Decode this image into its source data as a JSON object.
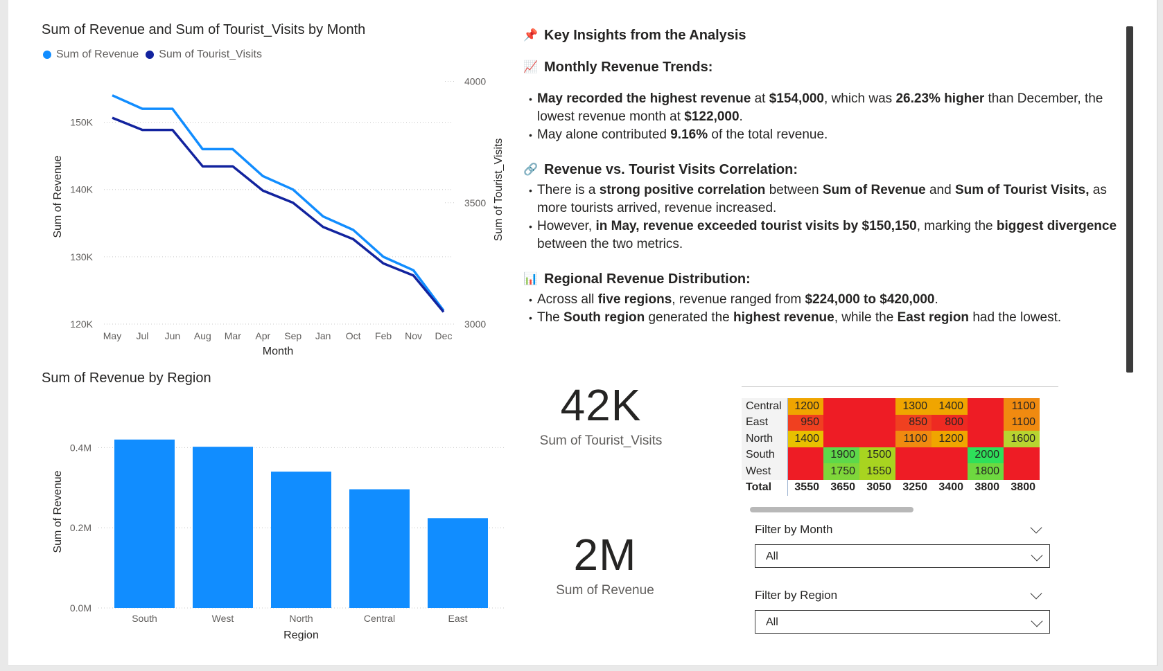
{
  "line_chart": {
    "title": "Sum of Revenue and Sum of Tourist_Visits by Month",
    "legend": [
      {
        "label": "Sum of Revenue",
        "color": "#118DFF"
      },
      {
        "label": "Sum of Tourist_Visits",
        "color": "#12239E"
      }
    ]
  },
  "bar_chart": {
    "title": "Sum of Revenue by Region"
  },
  "chart_data": [
    {
      "type": "line",
      "title": "Sum of Revenue and Sum of Tourist_Visits by Month",
      "xlabel": "Month",
      "ylabel": "Sum of Revenue",
      "y2label": "Sum of Tourist_Visits",
      "categories": [
        "May",
        "Jul",
        "Jun",
        "Aug",
        "Mar",
        "Apr",
        "Sep",
        "Jan",
        "Oct",
        "Feb",
        "Nov",
        "Dec"
      ],
      "series": [
        {
          "name": "Sum of Revenue",
          "axis": "left",
          "color": "#118DFF",
          "values": [
            154000,
            152000,
            152000,
            146000,
            146000,
            142000,
            140000,
            136000,
            134000,
            130000,
            128000,
            122000
          ]
        },
        {
          "name": "Sum of Tourist_Visits",
          "axis": "right",
          "color": "#12239E",
          "values": [
            3850,
            3800,
            3800,
            3650,
            3650,
            3550,
            3500,
            3400,
            3350,
            3250,
            3200,
            3050
          ]
        }
      ],
      "ylim": [
        120000,
        155000
      ],
      "yticks": [
        {
          "v": 120000,
          "label": "120K"
        },
        {
          "v": 130000,
          "label": "130K"
        },
        {
          "v": 140000,
          "label": "140K"
        },
        {
          "v": 150000,
          "label": "150K"
        }
      ],
      "y2lim": [
        3000,
        4050
      ],
      "y2ticks": [
        {
          "v": 3000,
          "label": "3000"
        },
        {
          "v": 3500,
          "label": "3500"
        },
        {
          "v": 4000,
          "label": "4000"
        }
      ],
      "grid": true,
      "legend": "top-left"
    },
    {
      "type": "bar",
      "title": "Sum of Revenue by Region",
      "xlabel": "Region",
      "ylabel": "Sum of Revenue",
      "categories": [
        "South",
        "West",
        "North",
        "Central",
        "East"
      ],
      "values": [
        420000,
        402000,
        340000,
        296000,
        224000
      ],
      "color": "#118DFF",
      "ylim": [
        0,
        480000
      ],
      "yticks": [
        {
          "v": 0,
          "label": "0.0M"
        },
        {
          "v": 200000,
          "label": "0.2M"
        },
        {
          "v": 400000,
          "label": "0.4M"
        }
      ],
      "grid": true
    }
  ],
  "insights": {
    "title": "Key Insights from the Analysis",
    "sections": [
      {
        "heading": "Monthly Revenue Trends:",
        "icon": "chart-increasing-icon",
        "bullets": [
          [
            {
              "t": "May recorded the highest revenue",
              "b": true
            },
            {
              "t": " at ",
              "b": false
            },
            {
              "t": "$154,000",
              "b": true
            },
            {
              "t": ", which was ",
              "b": false
            },
            {
              "t": "26.23% higher",
              "b": true
            },
            {
              "t": " than December, the lowest revenue month at ",
              "b": false
            },
            {
              "t": "$122,000",
              "b": true
            },
            {
              "t": ".",
              "b": false
            }
          ],
          [
            {
              "t": "May alone contributed ",
              "b": false
            },
            {
              "t": "9.16%",
              "b": true
            },
            {
              "t": " of the total revenue.",
              "b": false
            }
          ]
        ]
      },
      {
        "heading": "Revenue vs. Tourist Visits Correlation:",
        "icon": "link-icon",
        "bullets": [
          [
            {
              "t": "There is a ",
              "b": false
            },
            {
              "t": "strong positive correlation",
              "b": true
            },
            {
              "t": " between ",
              "b": false
            },
            {
              "t": "Sum of Revenue",
              "b": true
            },
            {
              "t": " and ",
              "b": false
            },
            {
              "t": "Sum of Tourist Visits,",
              "b": true
            },
            {
              "t": " as more tourists arrived, revenue increased.",
              "b": false
            }
          ],
          [
            {
              "t": "However, ",
              "b": false
            },
            {
              "t": "in May, revenue exceeded tourist visits by $150,150",
              "b": true
            },
            {
              "t": ", marking the ",
              "b": false
            },
            {
              "t": "biggest divergence",
              "b": true
            },
            {
              "t": " between the two metrics.",
              "b": false
            }
          ]
        ]
      },
      {
        "heading": "Regional Revenue Distribution:",
        "icon": "bar-chart-icon",
        "bullets": [
          [
            {
              "t": "Across all ",
              "b": false
            },
            {
              "t": "five regions",
              "b": true
            },
            {
              "t": ", revenue ranged from ",
              "b": false
            },
            {
              "t": "$224,000 to $420,000",
              "b": true
            },
            {
              "t": ".",
              "b": false
            }
          ],
          [
            {
              "t": "The ",
              "b": false
            },
            {
              "t": "South region",
              "b": true
            },
            {
              "t": " generated the ",
              "b": false
            },
            {
              "t": "highest revenue",
              "b": true
            },
            {
              "t": ", while the ",
              "b": false
            },
            {
              "t": "East region",
              "b": true
            },
            {
              "t": " had the lowest.",
              "b": false
            }
          ]
        ]
      }
    ]
  },
  "kpis": {
    "visits": {
      "value": "42K",
      "label": "Sum of Tourist_Visits"
    },
    "revenue": {
      "value": "2M",
      "label": "Sum of Revenue"
    }
  },
  "matrix": {
    "rows": [
      {
        "label": "Central",
        "cells": [
          {
            "v": "1200",
            "c": "#F0A500"
          },
          {
            "v": "",
            "c": "#EE1C25"
          },
          {
            "v": "",
            "c": "#EE1C25"
          },
          {
            "v": "1300",
            "c": "#F0A500"
          },
          {
            "v": "1400",
            "c": "#F0A500"
          },
          {
            "v": "",
            "c": "#EE1C25"
          },
          {
            "v": "1100",
            "c": "#F08A10"
          }
        ]
      },
      {
        "label": "East",
        "cells": [
          {
            "v": "950",
            "c": "#F04020"
          },
          {
            "v": "",
            "c": "#EE1C25"
          },
          {
            "v": "",
            "c": "#EE1C25"
          },
          {
            "v": "850",
            "c": "#F04020"
          },
          {
            "v": "800",
            "c": "#EE2A22"
          },
          {
            "v": "",
            "c": "#EE1C25"
          },
          {
            "v": "1100",
            "c": "#F08A10"
          }
        ]
      },
      {
        "label": "North",
        "cells": [
          {
            "v": "1400",
            "c": "#E8C000"
          },
          {
            "v": "",
            "c": "#EE1C25"
          },
          {
            "v": "",
            "c": "#EE1C25"
          },
          {
            "v": "1100",
            "c": "#F08A10"
          },
          {
            "v": "1200",
            "c": "#F0A500"
          },
          {
            "v": "",
            "c": "#EE1C25"
          },
          {
            "v": "1600",
            "c": "#B8D430"
          }
        ]
      },
      {
        "label": "South",
        "cells": [
          {
            "v": "",
            "c": "#EE1C25"
          },
          {
            "v": "1900",
            "c": "#5ED84A"
          },
          {
            "v": "1500",
            "c": "#A8D420"
          },
          {
            "v": "",
            "c": "#EE1C25"
          },
          {
            "v": "",
            "c": "#EE1C25"
          },
          {
            "v": "2000",
            "c": "#2EE05A"
          },
          {
            "v": "",
            "c": "#EE1C25"
          }
        ]
      },
      {
        "label": "West",
        "cells": [
          {
            "v": "",
            "c": "#EE1C25"
          },
          {
            "v": "1750",
            "c": "#7FD63A"
          },
          {
            "v": "1550",
            "c": "#A8D420"
          },
          {
            "v": "",
            "c": "#EE1C25"
          },
          {
            "v": "",
            "c": "#EE1C25"
          },
          {
            "v": "1800",
            "c": "#6ED840"
          },
          {
            "v": "",
            "c": "#EE1C25"
          }
        ]
      }
    ],
    "total": {
      "label": "Total",
      "cells": [
        "3550",
        "3650",
        "3050",
        "3250",
        "3400",
        "3800",
        "3800"
      ]
    }
  },
  "filters": {
    "month": {
      "label": "Filter by Month",
      "value": "All"
    },
    "region": {
      "label": "Filter by Region",
      "value": "All"
    }
  }
}
